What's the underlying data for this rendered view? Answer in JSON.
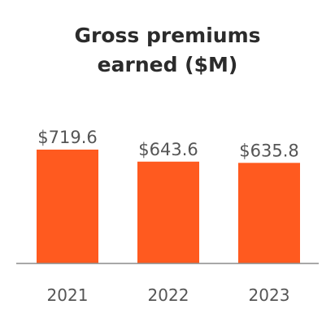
{
  "chart_data": {
    "type": "bar",
    "title_lines": [
      "Gross premiums",
      "earned ($M)"
    ],
    "categories": [
      "2021",
      "2022",
      "2023"
    ],
    "values": [
      719.6,
      643.6,
      635.8
    ],
    "value_labels": [
      "$719.6",
      "$643.6",
      "$635.8"
    ],
    "xlabel": "",
    "ylabel": "",
    "ylim": [
      0,
      719.6
    ],
    "grid": false,
    "legend": "none",
    "bar_color": "#FF5A1F",
    "axis_color": "#8C8C8C",
    "text_color": "#555555"
  }
}
